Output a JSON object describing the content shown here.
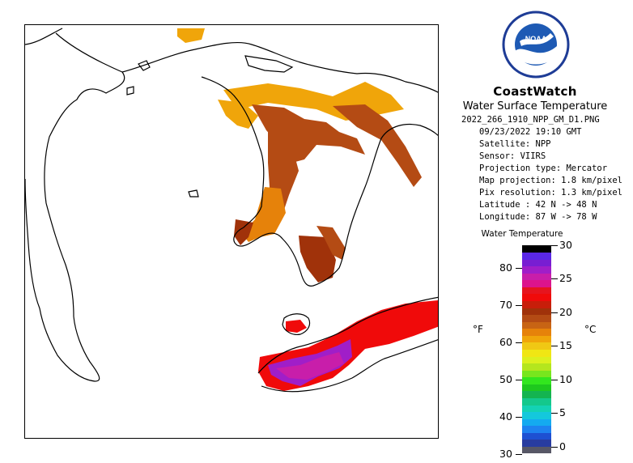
{
  "header": {
    "title": "CoastWatch",
    "product": "Water Surface Temperature",
    "filename": "2022_266_1910_NPP_GM_D1.PNG",
    "datetime": "09/23/2022   19:10 GMT",
    "satellite": "Satellite: NPP",
    "sensor": "Sensor: VIIRS",
    "projection_type": "Projection type:  Mercator",
    "map_projection": "Map projection: 1.8 km/pixel",
    "pix_resolution": "Pix resolution: 1.3 km/pixel",
    "latitude": "Latitude : 42 N -> 48 N",
    "longitude": "Longitude: 87 W -> 78 W"
  },
  "logo": {
    "text": "NOAA",
    "icon": "noaa-logo-icon"
  },
  "legend": {
    "title": "Water Temperature",
    "unit_left": "°F",
    "unit_right": "°C",
    "colors": [
      "#575766",
      "#283ca0",
      "#1e50d2",
      "#1e82f0",
      "#14aaf0",
      "#14c8dc",
      "#14d2b4",
      "#14c88c",
      "#14b450",
      "#1ec81e",
      "#32e61e",
      "#78e61e",
      "#b4e61e",
      "#dcf01e",
      "#f0e614",
      "#f0c814",
      "#f0a50a",
      "#e6820a",
      "#c86414",
      "#b44b14",
      "#a0320a",
      "#c81e0a",
      "#f00a0a",
      "#e6141e",
      "#dc148c",
      "#c81eaa",
      "#a01ec8",
      "#781ed2",
      "#5a28e6",
      "#000000"
    ],
    "fahrenheit_ticks": [
      {
        "label": "30",
        "value": 30
      },
      {
        "label": "40",
        "value": 40
      },
      {
        "label": "50",
        "value": 50
      },
      {
        "label": "60",
        "value": 60
      },
      {
        "label": "70",
        "value": 70
      },
      {
        "label": "80",
        "value": 80
      }
    ],
    "celsius_ticks": [
      {
        "label": "0",
        "value": 0
      },
      {
        "label": "5",
        "value": 5
      },
      {
        "label": "10",
        "value": 10
      },
      {
        "label": "15",
        "value": 15
      },
      {
        "label": "20",
        "value": 20
      },
      {
        "label": "25",
        "value": 25
      },
      {
        "label": "30",
        "value": 30
      }
    ],
    "range_c": [
      -1,
      30
    ]
  },
  "map": {
    "extent": "Latitude : 42 N -> 48 N; Longitude: 87 W -> 78 W",
    "colors": {
      "coast": "#000000",
      "land": "#ffffff",
      "cloud": "#ffffff"
    }
  }
}
